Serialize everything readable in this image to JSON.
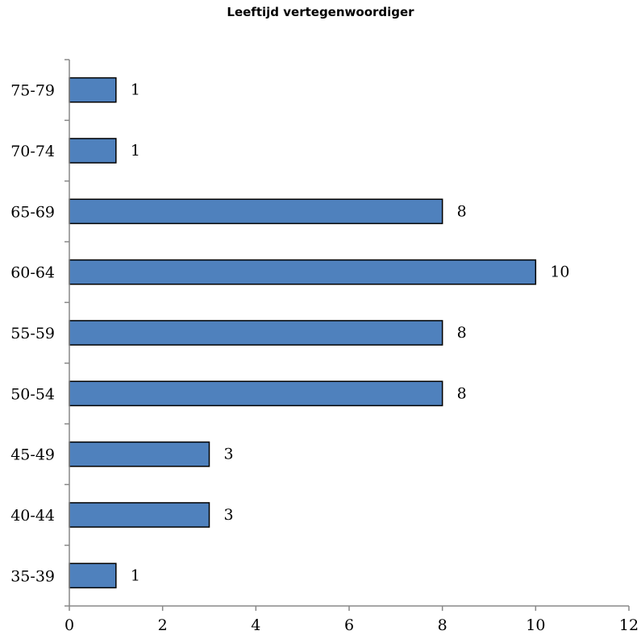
{
  "chart_data": {
    "type": "bar",
    "orientation": "horizontal",
    "title": "Leeftijd vertegenwoordiger",
    "categories": [
      "35-39",
      "40-44",
      "45-49",
      "50-54",
      "55-59",
      "60-64",
      "65-69",
      "70-74",
      "75-79"
    ],
    "values": [
      1,
      3,
      3,
      8,
      8,
      10,
      8,
      1,
      1
    ],
    "data_labels": [
      "1",
      "3",
      "3",
      "8",
      "8",
      "10",
      "8",
      "1",
      "1"
    ],
    "xlim": [
      0,
      12
    ],
    "x_ticks": [
      "0",
      "2",
      "4",
      "6",
      "8",
      "10",
      "12"
    ],
    "xlabel": "",
    "ylabel": "",
    "grid": false,
    "legend": "none",
    "bar_color": "#4f81bd"
  }
}
